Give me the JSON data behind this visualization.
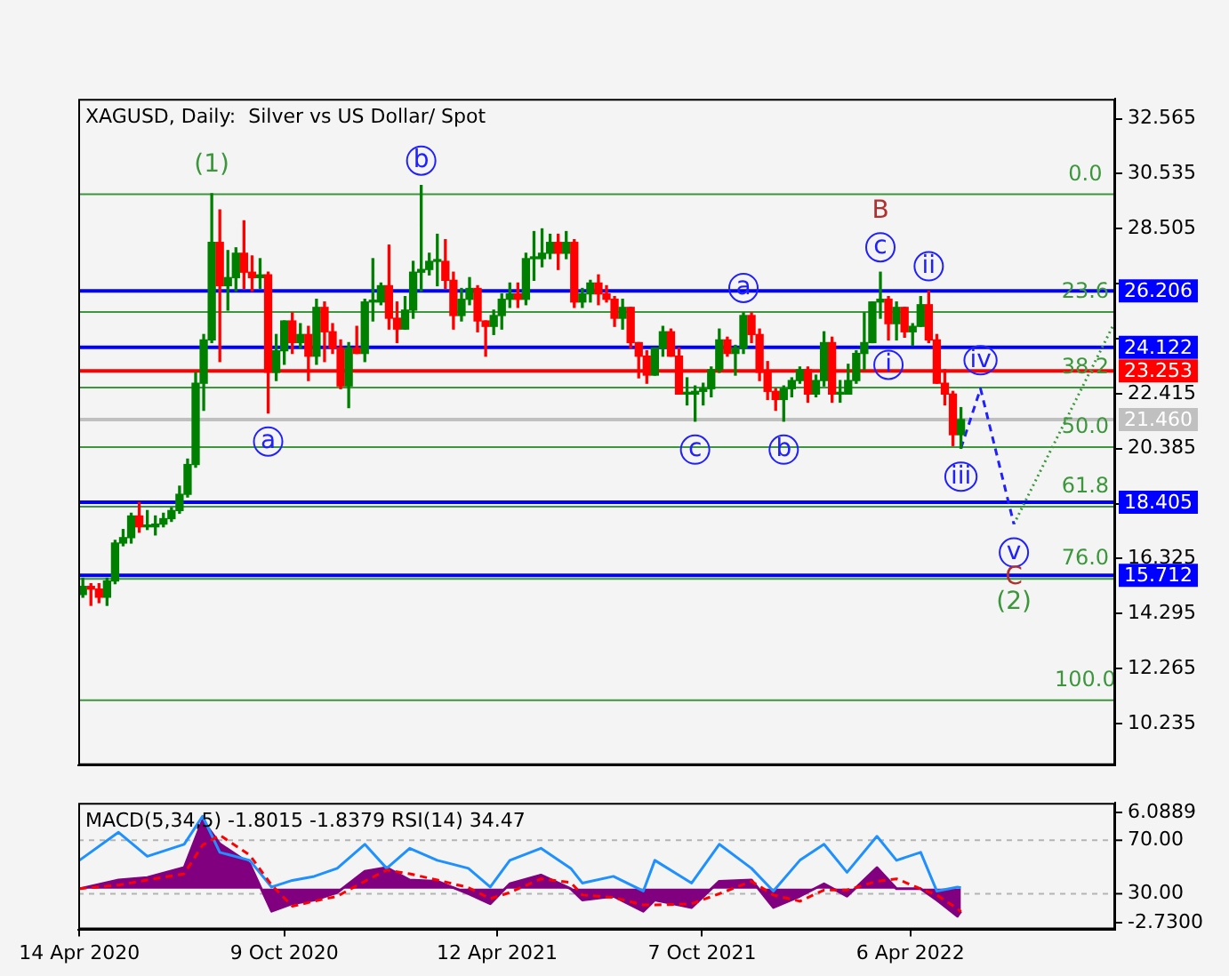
{
  "chart_data": [
    {
      "type": "candlestick",
      "title": "XAGUSD, Daily:  Silver vs US Dollar/ Spot",
      "tick_labels": "y",
      "x": [
        "2020-04-17",
        "2020-04-24",
        "2020-05-01",
        "2020-05-08",
        "2020-05-15",
        "2020-05-22",
        "2020-05-29",
        "2020-06-05",
        "2020-06-12",
        "2020-06-19",
        "2020-06-26",
        "2020-07-03",
        "2020-07-10",
        "2020-07-17",
        "2020-07-24",
        "2020-07-31",
        "2020-08-07",
        "2020-08-14",
        "2020-08-21",
        "2020-08-28",
        "2020-09-04",
        "2020-09-11",
        "2020-09-18",
        "2020-09-25",
        "2020-10-02",
        "2020-10-09",
        "2020-10-16",
        "2020-10-23",
        "2020-10-30",
        "2020-11-06",
        "2020-11-13",
        "2020-11-20",
        "2020-11-27",
        "2020-12-04",
        "2020-12-11",
        "2020-12-18",
        "2020-12-25",
        "2021-01-01",
        "2021-01-08",
        "2021-01-15",
        "2021-01-22",
        "2021-01-29",
        "2021-02-05",
        "2021-02-12",
        "2021-02-19",
        "2021-02-26",
        "2021-03-05",
        "2021-03-12",
        "2021-03-19",
        "2021-03-26",
        "2021-04-02",
        "2021-04-09",
        "2021-04-16",
        "2021-04-23",
        "2021-04-30",
        "2021-05-07",
        "2021-05-14",
        "2021-05-21",
        "2021-05-28",
        "2021-06-04",
        "2021-06-11",
        "2021-06-18",
        "2021-06-25",
        "2021-07-02",
        "2021-07-09",
        "2021-07-16",
        "2021-07-23",
        "2021-07-30",
        "2021-08-06",
        "2021-08-13",
        "2021-08-20",
        "2021-08-27",
        "2021-09-03",
        "2021-09-10",
        "2021-09-17",
        "2021-09-24",
        "2021-10-01",
        "2021-10-08",
        "2021-10-15",
        "2021-10-22",
        "2021-10-29",
        "2021-11-05",
        "2021-11-12",
        "2021-11-19",
        "2021-11-26",
        "2021-12-03",
        "2021-12-10",
        "2021-12-17",
        "2021-12-24",
        "2021-12-31",
        "2022-01-07",
        "2022-01-14",
        "2022-01-21",
        "2022-01-28",
        "2022-02-04",
        "2022-02-11",
        "2022-02-18",
        "2022-02-25",
        "2022-03-04",
        "2022-03-11",
        "2022-03-18",
        "2022-03-25",
        "2022-04-01",
        "2022-04-08",
        "2022-04-15",
        "2022-04-22",
        "2022-04-29",
        "2022-05-06",
        "2022-05-13",
        "2022-05-20"
      ],
      "ohlc": [
        [
          15.0,
          15.6,
          14.9,
          15.3
        ],
        [
          15.3,
          15.4,
          14.6,
          15.2
        ],
        [
          15.2,
          15.4,
          14.7,
          14.9
        ],
        [
          14.9,
          15.6,
          14.6,
          15.5
        ],
        [
          15.5,
          17.0,
          15.4,
          16.9
        ],
        [
          16.9,
          17.4,
          16.8,
          17.1
        ],
        [
          17.1,
          18.0,
          16.9,
          17.9
        ],
        [
          17.9,
          18.4,
          17.3,
          17.5
        ],
        [
          17.5,
          18.1,
          17.4,
          17.5
        ],
        [
          17.5,
          17.9,
          17.2,
          17.6
        ],
        [
          17.6,
          18.0,
          17.5,
          17.8
        ],
        [
          17.8,
          18.2,
          17.7,
          18.1
        ],
        [
          18.1,
          19.0,
          18.0,
          18.7
        ],
        [
          18.7,
          20.0,
          18.6,
          19.8
        ],
        [
          19.8,
          23.2,
          19.7,
          22.8
        ],
        [
          22.8,
          24.6,
          21.8,
          24.4
        ],
        [
          24.4,
          29.8,
          24.3,
          28.0
        ],
        [
          28.0,
          29.2,
          23.6,
          26.4
        ],
        [
          26.4,
          27.7,
          25.5,
          26.7
        ],
        [
          26.7,
          27.8,
          26.2,
          27.6
        ],
        [
          27.6,
          28.8,
          26.3,
          26.9
        ],
        [
          26.9,
          27.5,
          26.2,
          26.7
        ],
        [
          26.7,
          27.4,
          26.3,
          26.8
        ],
        [
          26.8,
          26.9,
          21.7,
          23.2
        ],
        [
          23.2,
          24.6,
          22.9,
          24.0
        ],
        [
          24.0,
          25.1,
          23.5,
          25.1
        ],
        [
          25.1,
          25.4,
          23.9,
          24.3
        ],
        [
          24.3,
          25.0,
          24.1,
          24.6
        ],
        [
          24.6,
          24.9,
          22.9,
          23.8
        ],
        [
          23.8,
          25.9,
          23.5,
          25.6
        ],
        [
          25.6,
          25.8,
          23.6,
          24.7
        ],
        [
          24.7,
          25.0,
          23.9,
          24.1
        ],
        [
          24.1,
          24.4,
          22.6,
          22.7
        ],
        [
          22.7,
          24.3,
          21.9,
          24.1
        ],
        [
          24.1,
          24.9,
          23.9,
          23.9
        ],
        [
          23.9,
          25.9,
          23.6,
          25.8
        ],
        [
          25.8,
          27.4,
          25.1,
          25.8
        ],
        [
          25.8,
          26.5,
          25.7,
          26.4
        ],
        [
          26.4,
          27.9,
          24.8,
          25.2
        ],
        [
          25.2,
          25.8,
          24.3,
          24.8
        ],
        [
          24.8,
          26.0,
          24.8,
          25.5
        ],
        [
          25.5,
          27.3,
          25.2,
          26.9
        ],
        [
          26.9,
          30.1,
          26.2,
          27.0
        ],
        [
          27.0,
          27.6,
          26.8,
          27.3
        ],
        [
          27.3,
          28.3,
          26.4,
          27.3
        ],
        [
          27.3,
          28.1,
          26.3,
          26.6
        ],
        [
          26.6,
          26.9,
          24.8,
          25.3
        ],
        [
          25.3,
          26.3,
          25.1,
          25.9
        ],
        [
          25.9,
          26.7,
          25.7,
          26.3
        ],
        [
          26.3,
          26.4,
          24.7,
          25.1
        ],
        [
          25.1,
          25.1,
          23.8,
          24.9
        ],
        [
          24.9,
          25.5,
          24.6,
          25.3
        ],
        [
          25.3,
          26.1,
          24.8,
          25.9
        ],
        [
          25.9,
          26.5,
          25.6,
          26.1
        ],
        [
          26.1,
          26.5,
          25.6,
          25.9
        ],
        [
          25.9,
          27.6,
          25.7,
          27.4
        ],
        [
          27.4,
          28.4,
          26.6,
          27.4
        ],
        [
          27.4,
          28.5,
          27.1,
          27.6
        ],
        [
          27.6,
          28.3,
          27.4,
          28.0
        ],
        [
          28.0,
          28.3,
          27.0,
          27.6
        ],
        [
          27.6,
          28.4,
          27.4,
          28.0
        ],
        [
          28.0,
          28.1,
          25.6,
          25.8
        ],
        [
          25.8,
          26.3,
          25.6,
          26.1
        ],
        [
          26.1,
          26.6,
          25.8,
          26.5
        ],
        [
          26.5,
          26.8,
          25.7,
          26.1
        ],
        [
          26.1,
          26.4,
          25.8,
          25.9
        ],
        [
          25.9,
          26.0,
          24.9,
          25.2
        ],
        [
          25.2,
          25.9,
          24.8,
          25.6
        ],
        [
          25.6,
          25.6,
          24.1,
          24.3
        ],
        [
          24.3,
          24.3,
          23.0,
          23.8
        ],
        [
          23.8,
          24.0,
          22.8,
          23.1
        ],
        [
          23.1,
          24.1,
          23.1,
          24.1
        ],
        [
          24.1,
          24.9,
          23.8,
          24.7
        ],
        [
          24.7,
          24.8,
          23.8,
          23.8
        ],
        [
          23.8,
          24.1,
          22.4,
          22.4
        ],
        [
          22.4,
          23.0,
          22.0,
          22.4
        ],
        [
          22.4,
          22.7,
          21.4,
          22.5
        ],
        [
          22.5,
          22.8,
          22.0,
          22.6
        ],
        [
          22.6,
          23.4,
          22.3,
          23.3
        ],
        [
          23.3,
          24.8,
          23.2,
          24.4
        ],
        [
          24.4,
          24.5,
          23.8,
          23.9
        ],
        [
          23.9,
          24.2,
          23.1,
          24.1
        ],
        [
          24.1,
          25.4,
          23.9,
          25.3
        ],
        [
          25.3,
          25.4,
          24.3,
          24.6
        ],
        [
          24.6,
          24.8,
          22.9,
          23.2
        ],
        [
          23.2,
          23.6,
          22.2,
          22.5
        ],
        [
          22.5,
          22.6,
          21.8,
          22.2
        ],
        [
          22.2,
          22.7,
          21.4,
          22.6
        ],
        [
          22.6,
          23.0,
          22.3,
          22.9
        ],
        [
          22.9,
          23.4,
          22.8,
          23.3
        ],
        [
          23.3,
          23.4,
          22.1,
          22.4
        ],
        [
          22.4,
          23.1,
          22.3,
          22.9
        ],
        [
          22.9,
          24.7,
          22.7,
          24.3
        ],
        [
          24.3,
          24.5,
          22.1,
          22.4
        ],
        [
          22.4,
          22.9,
          22.1,
          22.4
        ],
        [
          22.4,
          23.5,
          22.4,
          22.9
        ],
        [
          22.9,
          24.0,
          22.8,
          23.9
        ],
        [
          23.9,
          25.4,
          23.3,
          24.3
        ],
        [
          24.3,
          25.8,
          24.3,
          25.8
        ],
        [
          25.8,
          26.9,
          25.2,
          25.9
        ],
        [
          25.9,
          26.0,
          24.4,
          25.0
        ],
        [
          25.0,
          25.8,
          24.4,
          25.6
        ],
        [
          25.6,
          25.6,
          24.5,
          24.7
        ],
        [
          24.7,
          25.0,
          24.2,
          24.9
        ],
        [
          24.9,
          26.0,
          24.9,
          25.7
        ],
        [
          25.7,
          26.2,
          24.3,
          24.4
        ],
        [
          24.4,
          24.6,
          22.8,
          22.8
        ],
        [
          22.8,
          23.3,
          22.0,
          22.4
        ],
        [
          22.4,
          22.5,
          20.5,
          20.9
        ],
        [
          20.9,
          21.9,
          20.4,
          21.46
        ]
      ],
      "series": [
        {
          "type": "line",
          "color": "#2020ff",
          "line_style": "dashed",
          "x": [
            "2022-05-20",
            "2022-06-06",
            "2022-07-05"
          ],
          "values": [
            20.4,
            22.6,
            17.6
          ]
        },
        {
          "type": "line",
          "color": "#3c963c",
          "line_style": "dotted",
          "x": [
            "2022-07-05",
            "2022-09-30"
          ],
          "values": [
            17.6,
            25.0
          ]
        }
      ],
      "xlim": [
        "2020-04-13",
        "2022-10-01"
      ],
      "ylim": [
        8.7,
        33.3
      ],
      "yticks": [
        32.565,
        30.535,
        28.505,
        {
          "value": 26.475,
          "label": null
        },
        {
          "value": 24.445,
          "label": null
        },
        22.415,
        20.385,
        {
          "value": 18.355,
          "label": null
        },
        16.325,
        14.295,
        12.265,
        10.235
      ],
      "ref_lines": [
        {
          "axis": "y",
          "value": 29.78,
          "color": "#3c963c"
        },
        {
          "axis": "y",
          "value": 25.43,
          "color": "#3c963c"
        },
        {
          "axis": "y",
          "value": 22.64,
          "color": "#3c963c"
        },
        {
          "axis": "y",
          "value": 20.44,
          "color": "#3c963c"
        },
        {
          "axis": "y",
          "value": 18.24,
          "color": "#3c963c"
        },
        {
          "axis": "y",
          "value": 15.58,
          "color": "#3c963c"
        },
        {
          "axis": "y",
          "value": 11.1,
          "color": "#3c963c"
        },
        {
          "axis": "y",
          "value": 21.46,
          "label": "21.460",
          "color": "#c0c0c0"
        },
        {
          "axis": "y",
          "value": 26.206,
          "label": "26.206",
          "color": "#0000ff"
        },
        {
          "axis": "y",
          "value": 24.122,
          "label": "24.122",
          "color": "#0000ff"
        },
        {
          "axis": "y",
          "value": 23.253,
          "label": "23.253",
          "color": "#ff0000"
        },
        {
          "axis": "y",
          "value": 18.405,
          "label": "18.405",
          "color": "#0000ff"
        },
        {
          "axis": "y",
          "value": 15.712,
          "label": "15.712",
          "color": "#0000ff"
        }
      ],
      "annotations": [
        {
          "text": "(1)",
          "x": "2020-08-07",
          "y": 29.8
        },
        {
          "text": "a",
          "x": "2020-09-25",
          "y": 21.7
        },
        {
          "text": "b",
          "x": "2021-02-05",
          "y": 30.1
        },
        {
          "text": "c",
          "x": "2021-10-01",
          "y": 21.4
        },
        {
          "text": "a",
          "x": "2021-11-12",
          "y": 25.4
        },
        {
          "text": "b",
          "x": "2021-12-17",
          "y": 21.4
        },
        {
          "text": "B",
          "x": "2022-03-11",
          "y": 26.9
        },
        {
          "text": "c",
          "x": "2022-03-11",
          "y": 26.9
        },
        {
          "text": "i",
          "x": "2022-03-18",
          "y": 24.4
        },
        {
          "text": "ii",
          "x": "2022-04-22",
          "y": 26.2
        },
        {
          "text": "iii",
          "x": "2022-05-20",
          "y": 20.4
        },
        {
          "text": "iv",
          "x": "2022-06-06",
          "y": 22.6
        },
        {
          "text": "v",
          "x": "2022-07-05",
          "y": 17.6
        },
        {
          "text": "C",
          "x": "2022-07-05",
          "y": 17.6
        },
        {
          "text": "(2)",
          "x": "2022-07-05",
          "y": 17.6
        },
        {
          "text": "0.0",
          "x": "2022-09-05",
          "y": 29.78
        },
        {
          "text": "23.6",
          "x": "2022-09-05",
          "y": 25.43
        },
        {
          "text": "38.2",
          "x": "2022-09-05",
          "y": 22.64
        },
        {
          "text": "50.0",
          "x": "2022-09-05",
          "y": 20.44
        },
        {
          "text": "61.8",
          "x": "2022-09-05",
          "y": 18.24
        },
        {
          "text": "76.0",
          "x": "2022-09-05",
          "y": 15.58
        },
        {
          "text": "100.0",
          "x": "2022-09-05",
          "y": 11.1
        }
      ]
    },
    {
      "type": "area",
      "title": "MACD(5,34,5) -1.8015 -1.8379 RSI(14) 34.47",
      "x": [
        "2020-04-14",
        "2020-05-18",
        "2020-06-12",
        "2020-07-14",
        "2020-07-30",
        "2020-08-14",
        "2020-09-09",
        "2020-09-28",
        "2020-10-16",
        "2020-11-04",
        "2020-11-24",
        "2020-12-18",
        "2021-01-06",
        "2021-01-26",
        "2021-02-19",
        "2021-03-18",
        "2021-04-06",
        "2021-04-23",
        "2021-05-20",
        "2021-06-15",
        "2021-06-25",
        "2021-07-22",
        "2021-08-17",
        "2021-08-27",
        "2021-09-28",
        "2021-10-22",
        "2021-11-19",
        "2021-12-08",
        "2021-12-31",
        "2022-01-21",
        "2022-02-10",
        "2022-03-08",
        "2022-03-25",
        "2022-04-15",
        "2022-04-29",
        "2022-05-17",
        "2022-05-20"
      ],
      "series": [
        {
          "type": "area",
          "color": "#800080",
          "values": [
            0,
            0.7,
            0.9,
            1.7,
            5.5,
            3.6,
            2.0,
            -1.8,
            -1.2,
            -0.9,
            -0.3,
            1.4,
            1.7,
            0.7,
            0.6,
            -0.4,
            -1.2,
            0.4,
            1.1,
            0,
            -0.9,
            -0.6,
            -1.8,
            -0.9,
            -1.5,
            0.6,
            0.7,
            -1.5,
            -0.6,
            0.4,
            -0.6,
            1.7,
            0,
            0,
            -0.9,
            -2.2,
            -1.8015
          ]
        },
        {
          "type": "line",
          "color": "#ff0000",
          "line_style": "dashed",
          "values": [
            0,
            0.3,
            0.7,
            1.2,
            3.5,
            4.3,
            2.7,
            0.3,
            -1.4,
            -1.0,
            -0.6,
            0.6,
            1.5,
            1.2,
            0.7,
            0.1,
            -0.8,
            -0.3,
            0.8,
            0.5,
            -0.5,
            -0.7,
            -1.3,
            -1.3,
            -1.2,
            -0.4,
            0.6,
            -0.5,
            -1.0,
            -0.1,
            -0.1,
            0.6,
            0.8,
            0,
            -0.5,
            -1.6,
            -1.8379
          ]
        },
        {
          "type": "line",
          "color": "#1e90ff",
          "axis": "y2",
          "values": [
            55,
            76,
            58,
            67,
            88,
            61,
            55,
            35,
            40,
            43,
            49,
            67,
            49,
            64,
            55,
            49,
            35,
            55,
            64,
            49,
            38,
            43,
            32,
            55,
            38,
            67,
            49,
            32,
            55,
            67,
            46,
            73,
            55,
            61,
            32,
            35,
            34.47
          ]
        }
      ],
      "xlim": [
        "2020-04-13",
        "2022-10-01"
      ],
      "xticks": [
        {
          "value": "2020-04-14",
          "label": "14 Apr 2020"
        },
        {
          "value": "2020-10-09",
          "label": "9 Oct 2020"
        },
        {
          "value": "2021-04-12",
          "label": "12 Apr 2021"
        },
        {
          "value": "2021-10-07",
          "label": "7 Oct 2021"
        },
        {
          "value": "2022-04-06",
          "label": "6 Apr 2022"
        }
      ],
      "ylim": [
        -3.26,
        6.89
      ],
      "yticks": [
        6.0889,
        {
          "value": -2.73,
          "label": "-2.7300"
        }
      ],
      "y2lim": [
        3.3,
        98
      ],
      "y2ticks": [
        {
          "value": 70,
          "label": "70.00"
        },
        {
          "value": 30,
          "label": "30.00"
        }
      ],
      "ref_lines": [
        {
          "axis": "y2",
          "value": 70,
          "color": "#b4b4b4",
          "line_style": "dashed"
        },
        {
          "axis": "y2",
          "value": 30,
          "color": "#b4b4b4",
          "line_style": "dashed"
        }
      ]
    }
  ]
}
